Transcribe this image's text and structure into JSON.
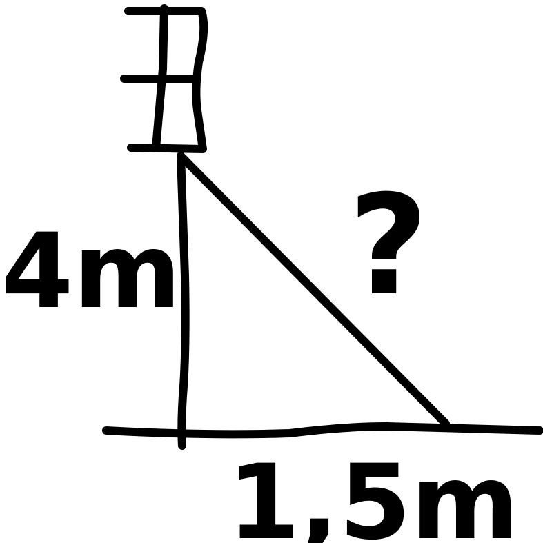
{
  "labels": {
    "height": "4m",
    "base": "1,5m",
    "hypotenuse": "?"
  }
}
